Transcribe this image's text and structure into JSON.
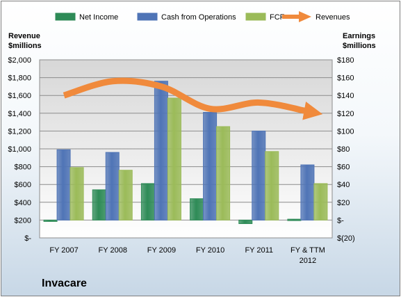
{
  "chart_data": {
    "type": "bar",
    "title": "Invacare",
    "categories": [
      "FY 2007",
      "FY 2008",
      "FY 2009",
      "FY 2010",
      "FY 2011",
      "FY & TTM 2012"
    ],
    "left_axis": {
      "label": "Revenue $millions",
      "label_lines": [
        "Revenue",
        "$millions"
      ],
      "ylim": [
        0,
        2000
      ],
      "ticks": [
        0,
        200,
        400,
        600,
        800,
        1000,
        1200,
        1400,
        1600,
        1800,
        2000
      ],
      "tick_labels": [
        "$-",
        "$200",
        "$400",
        "$600",
        "$800",
        "$1,000",
        "$1,200",
        "$1,400",
        "$1,600",
        "$1,800",
        "$2,000"
      ]
    },
    "right_axis": {
      "label": "Earnings $millions",
      "label_lines": [
        "Earnings",
        "$millions"
      ],
      "ylim": [
        -20,
        180
      ],
      "ticks": [
        -20,
        0,
        20,
        40,
        60,
        80,
        100,
        120,
        140,
        160,
        180
      ],
      "tick_labels": [
        "$(20)",
        "$-",
        "$20",
        "$40",
        "$60",
        "$80",
        "$100",
        "$120",
        "$140",
        "$160",
        "$180"
      ]
    },
    "series": [
      {
        "name": "Net Income",
        "axis": "right",
        "kind": "bar",
        "color": "#2e8b57",
        "values": [
          -1,
          34,
          41,
          24,
          -4,
          1
        ]
      },
      {
        "name": "Cash from Operations",
        "axis": "right",
        "kind": "bar",
        "color": "#4f74b6",
        "values": [
          79,
          76,
          156,
          121,
          100,
          62
        ]
      },
      {
        "name": "FCF",
        "axis": "right",
        "kind": "bar",
        "color": "#9bbb59",
        "values": [
          59,
          56,
          137,
          105,
          77,
          41
        ]
      },
      {
        "name": "Revenues",
        "axis": "left",
        "kind": "line",
        "color": "#f08a3c",
        "values": [
          1600,
          1760,
          1700,
          1450,
          1520,
          1420
        ]
      }
    ],
    "legend_position": "top",
    "grid": true
  }
}
